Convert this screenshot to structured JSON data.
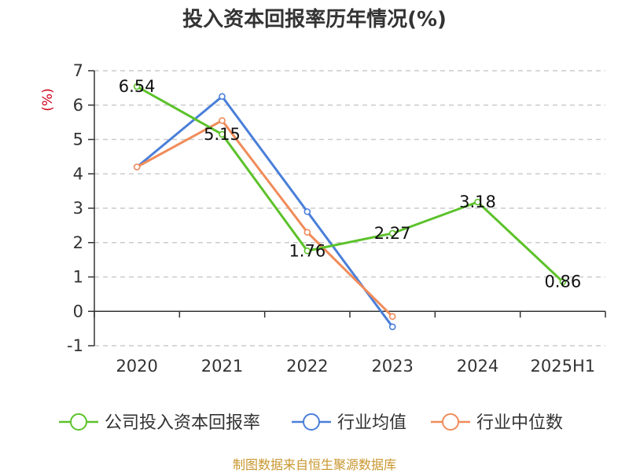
{
  "chart_data": {
    "type": "line",
    "title": "投入资本回报率历年情况(%)",
    "ylabel": "(%)",
    "xlabel": "",
    "categories": [
      "2020",
      "2021",
      "2022",
      "2023",
      "2024",
      "2025H1"
    ],
    "ylim": [
      -1,
      7
    ],
    "yticks": [
      -1,
      0,
      1,
      2,
      3,
      4,
      5,
      6,
      7
    ],
    "grid": true,
    "legend_position": "bottom",
    "series": [
      {
        "name": "公司投入资本回报率",
        "color": "#5cc22b",
        "values": [
          6.54,
          5.15,
          1.76,
          2.27,
          3.18,
          0.86
        ],
        "show_labels": true
      },
      {
        "name": "行业均值",
        "color": "#4a7fd9",
        "values": [
          4.2,
          6.25,
          2.9,
          -0.45,
          null,
          null
        ],
        "show_labels": false
      },
      {
        "name": "行业中位数",
        "color": "#f08c5a",
        "values": [
          4.2,
          5.55,
          2.3,
          -0.15,
          null,
          null
        ],
        "show_labels": false
      }
    ]
  },
  "footer": {
    "source": "制图数据来自恒生聚源数据库"
  }
}
